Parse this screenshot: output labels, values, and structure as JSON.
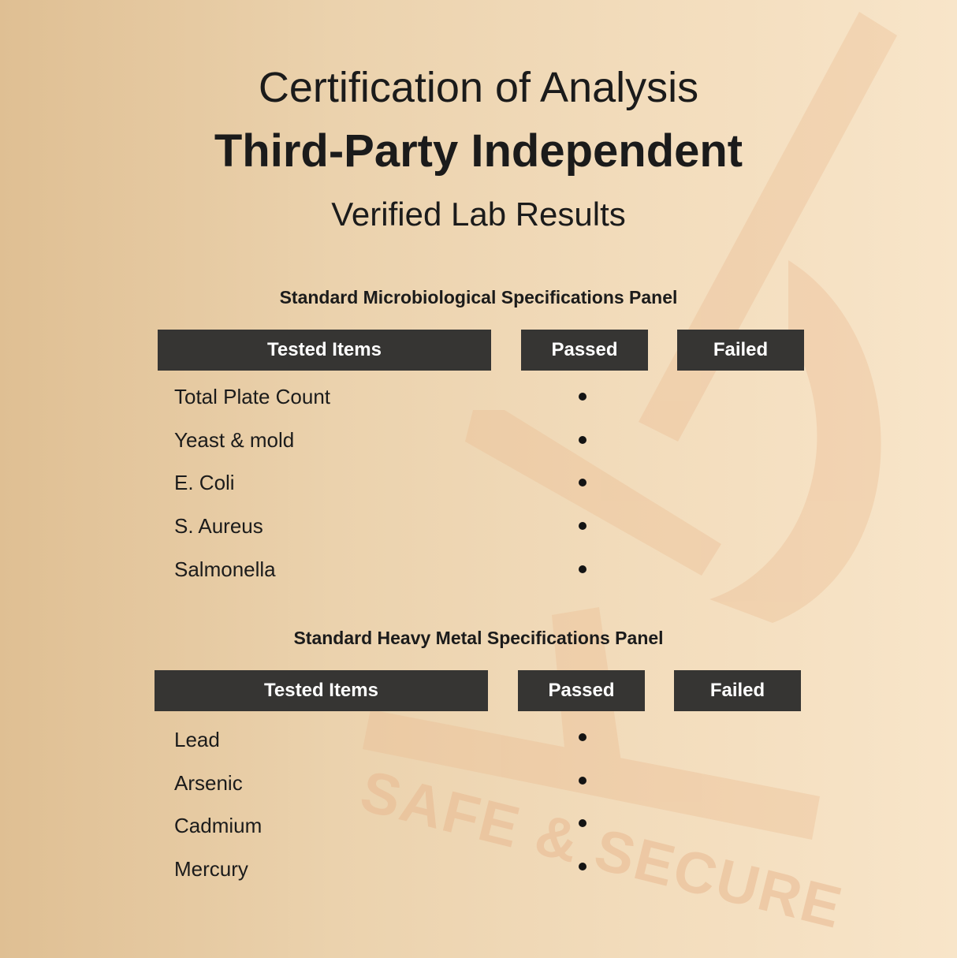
{
  "header": {
    "title": "Certification of Analysis",
    "subtitle": "Third-Party Independent",
    "tagline": "Verified Lab Results"
  },
  "watermark": {
    "text": "SAFE & SECURE",
    "icon": "microscope-icon"
  },
  "panels": [
    {
      "title": "Standard Microbiological Specifications Panel",
      "columns": [
        "Tested Items",
        "Passed",
        "Failed"
      ],
      "rows": [
        {
          "item": "Total Plate Count",
          "result": "passed"
        },
        {
          "item": "Yeast & mold",
          "result": "passed"
        },
        {
          "item": "E. Coli",
          "result": "passed"
        },
        {
          "item": "S. Aureus",
          "result": "passed"
        },
        {
          "item": "Salmonella",
          "result": "passed"
        }
      ]
    },
    {
      "title": "Standard Heavy Metal Specifications Panel",
      "columns": [
        "Tested Items",
        "Passed",
        "Failed"
      ],
      "rows": [
        {
          "item": "Lead",
          "result": "passed"
        },
        {
          "item": "Arsenic",
          "result": "passed"
        },
        {
          "item": "Cadmium",
          "result": "passed"
        },
        {
          "item": "Mercury",
          "result": "passed"
        }
      ]
    }
  ],
  "colors": {
    "header_bg": "#363533",
    "header_text": "#ffffff",
    "watermark": "#e9b991"
  }
}
